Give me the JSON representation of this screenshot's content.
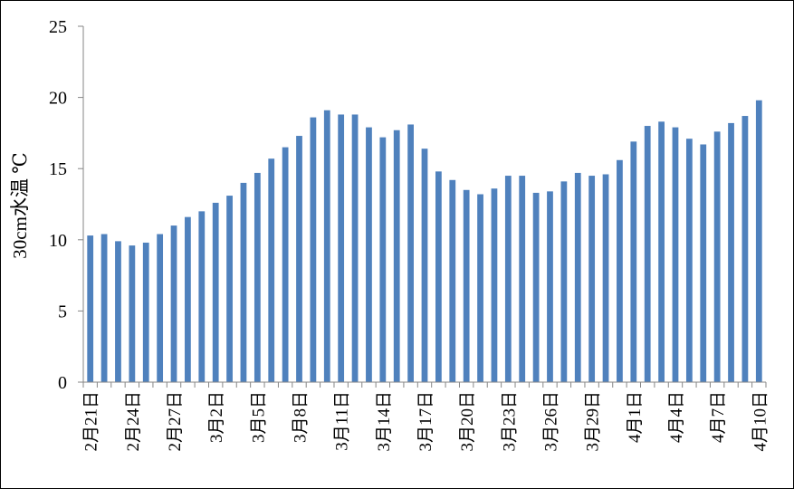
{
  "chart_data": {
    "type": "bar",
    "title": "",
    "xlabel": "",
    "ylabel": "30cm水温 ℃",
    "ylim": [
      0,
      25
    ],
    "yticks": [
      0,
      5,
      10,
      15,
      20,
      25
    ],
    "grid": false,
    "legend": "none",
    "colors": {
      "bar": "#4F81BD",
      "axis": "#868686",
      "frame": "#000000"
    },
    "categories": [
      "2月21日",
      "2月22日",
      "2月23日",
      "2月24日",
      "2月25日",
      "2月26日",
      "2月27日",
      "2月28日",
      "3月1日",
      "3月2日",
      "3月3日",
      "3月4日",
      "3月5日",
      "3月6日",
      "3月7日",
      "3月8日",
      "3月9日",
      "3月10日",
      "3月11日",
      "3月12日",
      "3月13日",
      "3月14日",
      "3月15日",
      "3月16日",
      "3月17日",
      "3月18日",
      "3月19日",
      "3月20日",
      "3月21日",
      "3月22日",
      "3月23日",
      "3月24日",
      "3月25日",
      "3月26日",
      "3月27日",
      "3月28日",
      "3月29日",
      "3月30日",
      "3月31日",
      "4月1日",
      "4月2日",
      "4月3日",
      "4月4日",
      "4月5日",
      "4月6日",
      "4月7日",
      "4月8日",
      "4月9日",
      "4月10日"
    ],
    "tick_labels": {
      "0": "2月21日",
      "3": "2月24日",
      "6": "2月27日",
      "9": "3月2日",
      "12": "3月5日",
      "15": "3月8日",
      "18": "3月11日",
      "21": "3月14日",
      "24": "3月17日",
      "27": "3月20日",
      "30": "3月23日",
      "33": "3月26日",
      "36": "3月29日",
      "39": "4月1日",
      "42": "4月4日",
      "45": "4月7日",
      "48": "4月10日"
    },
    "values": [
      10.3,
      10.4,
      9.9,
      9.6,
      9.8,
      10.4,
      11.0,
      11.6,
      12.0,
      12.6,
      13.1,
      14.0,
      14.7,
      15.7,
      16.5,
      17.3,
      18.6,
      19.1,
      18.8,
      18.8,
      17.9,
      17.2,
      17.7,
      18.1,
      16.4,
      14.8,
      14.2,
      13.5,
      13.2,
      13.6,
      14.5,
      14.5,
      13.3,
      13.4,
      14.1,
      14.7,
      14.5,
      14.6,
      15.6,
      16.9,
      18.0,
      18.3,
      17.9,
      17.1,
      16.7,
      17.6,
      18.2,
      18.7,
      19.8
    ]
  }
}
